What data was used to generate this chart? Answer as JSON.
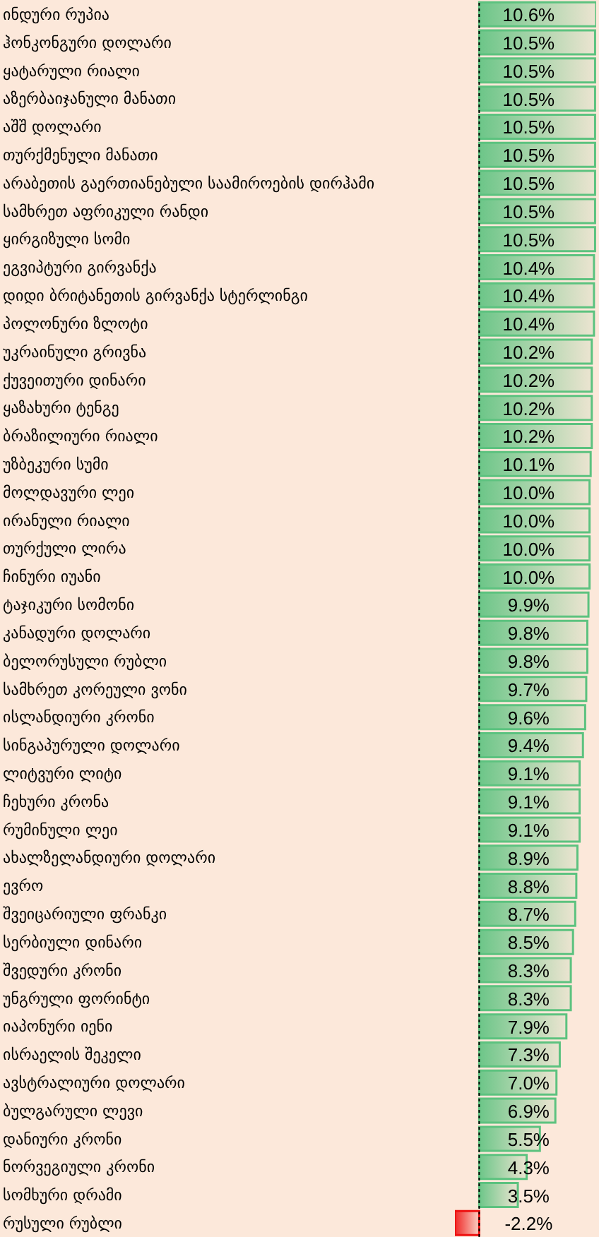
{
  "chart_data": {
    "type": "bar",
    "orientation": "horizontal",
    "categories": [
      "ინდური რუპია",
      "ჰონკონგური დოლარი",
      "ყატარული რიალი",
      "აზერბაიჯანული მანათი",
      "აშშ დოლარი",
      "თურქმენული მანათი",
      "არაბეთის გაერთიანებული საამიროების დირჰამი",
      "სამხრეთ აფრიკული რანდი",
      "ყირგიზული სომი",
      "ეგვიპტური გირვანქა",
      "დიდი ბრიტანეთის გირვანქა სტერლინგი",
      "პოლონური ზლოტი",
      "უკრაინული გრივნა",
      "ქუვეითური დინარი",
      "ყაზახური ტენგე",
      "ბრაზილიური რიალი",
      "უზბეკური სუმი",
      "მოლდავური ლეი",
      "ირანული რიალი",
      "თურქული ლირა",
      "ჩინური იუანი",
      "ტაჯიკური სომონი",
      "კანადური დოლარი",
      "ბელორუსული რუბლი",
      "სამხრეთ კორეული ვონი",
      "ისლანდიური კრონი",
      "სინგაპურული დოლარი",
      "ლიტვური ლიტი",
      "ჩეხური კრონა",
      "რუმინული ლეი",
      "ახალზელანდიური დოლარი",
      "ევრო",
      "შვეიცარიული ფრანკი",
      "სერბიული დინარი",
      "შვედური კრონი",
      "უნგრული ფორინტი",
      "იაპონური იენი",
      "ისრაელის შეკელი",
      "ავსტრალიური დოლარი",
      "ბულგარული ლევი",
      "დანიური კრონი",
      "ნორვეგიული კრონი",
      "სომხური დრამი",
      "რუსული რუბლი"
    ],
    "values": [
      10.6,
      10.5,
      10.5,
      10.5,
      10.5,
      10.5,
      10.5,
      10.5,
      10.5,
      10.4,
      10.4,
      10.4,
      10.2,
      10.2,
      10.2,
      10.2,
      10.1,
      10.0,
      10.0,
      10.0,
      10.0,
      9.9,
      9.8,
      9.8,
      9.7,
      9.6,
      9.4,
      9.1,
      9.1,
      9.1,
      8.9,
      8.8,
      8.7,
      8.5,
      8.3,
      8.3,
      7.9,
      7.3,
      7.0,
      6.9,
      5.5,
      4.3,
      3.5,
      -2.2
    ],
    "value_labels": [
      "10.6%",
      "10.5%",
      "10.5%",
      "10.5%",
      "10.5%",
      "10.5%",
      "10.5%",
      "10.5%",
      "10.5%",
      "10.4%",
      "10.4%",
      "10.4%",
      "10.2%",
      "10.2%",
      "10.2%",
      "10.2%",
      "10.1%",
      "10.0%",
      "10.0%",
      "10.0%",
      "10.0%",
      "9.9%",
      "9.8%",
      "9.8%",
      "9.7%",
      "9.6%",
      "9.4%",
      "9.1%",
      "9.1%",
      "9.1%",
      "8.9%",
      "8.8%",
      "8.7%",
      "8.5%",
      "8.3%",
      "8.3%",
      "7.9%",
      "7.3%",
      "7.0%",
      "6.9%",
      "5.5%",
      "4.3%",
      "3.5%",
      "-2.2%"
    ],
    "colors": [
      "#5cc27f",
      "#5cc27f",
      "#5cc27f",
      "#5cc27f",
      "#5cc27f",
      "#5cc27f",
      "#5cc27f",
      "#5cc27f",
      "#5cc27f",
      "#5cc27f",
      "#5cc27f",
      "#5cc27f",
      "#5cc27f",
      "#5cc27f",
      "#5cc27f",
      "#5cc27f",
      "#5cc27f",
      "#5cc27f",
      "#5cc27f",
      "#5cc27f",
      "#5cc27f",
      "#5cc27f",
      "#5cc27f",
      "#5cc27f",
      "#5cc27f",
      "#5cc27f",
      "#5cc27f",
      "#5cc27f",
      "#5cc27f",
      "#5cc27f",
      "#5cc27f",
      "#5cc27f",
      "#5cc27f",
      "#5cc27f",
      "#5cc27f",
      "#5cc27f",
      "#5cc27f",
      "#5cc27f",
      "#5cc27f",
      "#5cc27f",
      "#5cc27f",
      "#5cc27f",
      "#5cc27f",
      "#ee1111"
    ],
    "ref_lines": [
      {
        "axis": "x",
        "value": 0,
        "color": "#000000",
        "line_style": "dotted"
      }
    ],
    "grid": false,
    "legend": false
  }
}
